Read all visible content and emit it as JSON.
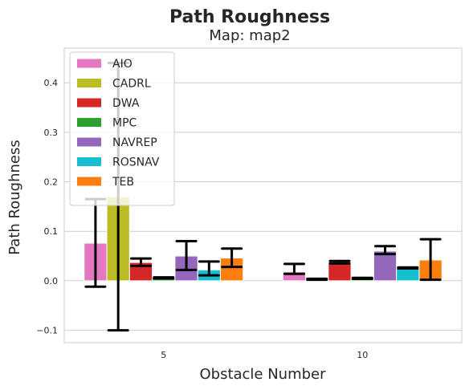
{
  "chart_data": {
    "type": "bar",
    "title": "Path Roughness",
    "subtitle": "Map: map2",
    "xlabel": "Obstacle Number",
    "ylabel": "Path Roughness",
    "categories": [
      "5",
      "10"
    ],
    "ylim": [
      -0.125,
      0.47
    ],
    "yticks": [
      -0.1,
      0.0,
      0.1,
      0.2,
      0.3,
      0.4
    ],
    "ytick_labels": [
      "−0.1",
      "0.0",
      "0.1",
      "0.2",
      "0.3",
      "0.4"
    ],
    "grid": true,
    "legend_position": "top-left",
    "series": [
      {
        "name": "AIO",
        "color": "#e377c2",
        "values": [
          0.076,
          0.018
        ],
        "err_low": [
          -0.012,
          0.014
        ],
        "err_high": [
          0.165,
          0.034
        ]
      },
      {
        "name": "CADRL",
        "color": "#bcbd22",
        "values": [
          0.17,
          0.003
        ],
        "err_low": [
          -0.1,
          0.002
        ],
        "err_high": [
          0.44,
          0.004
        ]
      },
      {
        "name": "DWA",
        "color": "#d62728",
        "values": [
          0.037,
          0.038
        ],
        "err_low": [
          0.03,
          0.035
        ],
        "err_high": [
          0.045,
          0.04
        ]
      },
      {
        "name": "MPC",
        "color": "#2ca02c",
        "values": [
          0.006,
          0.005
        ],
        "err_low": [
          0.005,
          0.004
        ],
        "err_high": [
          0.007,
          0.006
        ]
      },
      {
        "name": "NAVREP",
        "color": "#9467bd",
        "values": [
          0.05,
          0.06
        ],
        "err_low": [
          0.022,
          0.054
        ],
        "err_high": [
          0.08,
          0.07
        ]
      },
      {
        "name": "ROSNAV",
        "color": "#17becf",
        "values": [
          0.022,
          0.026
        ],
        "err_low": [
          0.011,
          0.025
        ],
        "err_high": [
          0.039,
          0.027
        ]
      },
      {
        "name": "TEB",
        "color": "#ff7f0e",
        "values": [
          0.046,
          0.042
        ],
        "err_low": [
          0.028,
          0.002
        ],
        "err_high": [
          0.065,
          0.084
        ]
      }
    ]
  }
}
